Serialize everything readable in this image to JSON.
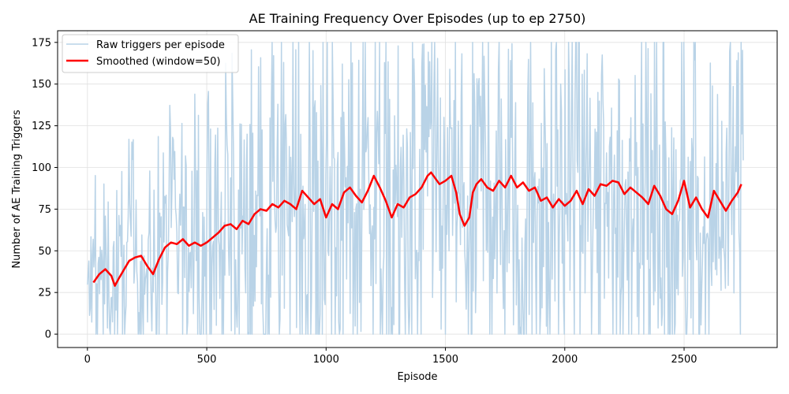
{
  "chart_data": {
    "type": "line",
    "title": "AE Training Frequency Over Episodes (up to ep 2750)",
    "xlabel": "Episode",
    "ylabel": "Number of AE Training Triggers",
    "xlim": [
      -125,
      2890
    ],
    "ylim": [
      -8,
      182
    ],
    "xticks": [
      0,
      500,
      1000,
      1500,
      2000,
      2500
    ],
    "yticks": [
      0,
      25,
      50,
      75,
      100,
      125,
      150,
      175
    ],
    "grid": true,
    "legend_position": "top-left",
    "raw_series": {
      "name": "Raw triggers per episode",
      "color": "#b9d3e7",
      "x_start": 0,
      "x_end": 2750,
      "step": 3,
      "min": 0,
      "max": 175
    },
    "series": [
      {
        "name": "Smoothed (window=50)",
        "color": "#ff0000",
        "x": [
          25,
          50,
          75,
          100,
          115,
          130,
          150,
          175,
          200,
          225,
          250,
          275,
          300,
          325,
          350,
          375,
          400,
          425,
          450,
          475,
          500,
          525,
          550,
          575,
          600,
          625,
          650,
          675,
          700,
          725,
          750,
          775,
          800,
          825,
          850,
          875,
          900,
          925,
          950,
          975,
          1000,
          1025,
          1050,
          1075,
          1100,
          1125,
          1150,
          1175,
          1200,
          1225,
          1250,
          1275,
          1300,
          1325,
          1350,
          1375,
          1400,
          1425,
          1440,
          1460,
          1475,
          1500,
          1525,
          1545,
          1560,
          1580,
          1600,
          1615,
          1630,
          1650,
          1675,
          1700,
          1725,
          1750,
          1775,
          1800,
          1825,
          1850,
          1875,
          1900,
          1925,
          1950,
          1975,
          2000,
          2025,
          2050,
          2075,
          2100,
          2125,
          2150,
          2175,
          2200,
          2225,
          2250,
          2275,
          2300,
          2325,
          2350,
          2375,
          2400,
          2425,
          2450,
          2475,
          2500,
          2525,
          2550,
          2575,
          2600,
          2625,
          2650,
          2675,
          2700,
          2725,
          2740
        ],
        "values": [
          31,
          36,
          39,
          35,
          29,
          33,
          38,
          44,
          46,
          47,
          41,
          36,
          45,
          52,
          55,
          54,
          57,
          53,
          55,
          53,
          55,
          58,
          61,
          65,
          66,
          63,
          68,
          66,
          72,
          75,
          74,
          78,
          76,
          80,
          78,
          75,
          86,
          82,
          78,
          81,
          70,
          78,
          75,
          85,
          88,
          83,
          79,
          86,
          95,
          88,
          80,
          70,
          78,
          76,
          82,
          84,
          88,
          95,
          97,
          93,
          90,
          92,
          95,
          85,
          72,
          65,
          70,
          85,
          90,
          93,
          88,
          86,
          92,
          88,
          95,
          88,
          91,
          86,
          88,
          80,
          82,
          76,
          81,
          77,
          80,
          86,
          78,
          87,
          83,
          90,
          89,
          92,
          91,
          84,
          88,
          85,
          82,
          78,
          89,
          83,
          75,
          72,
          80,
          92,
          76,
          82,
          75,
          70,
          86,
          80,
          74,
          80,
          85,
          90
        ]
      }
    ]
  }
}
